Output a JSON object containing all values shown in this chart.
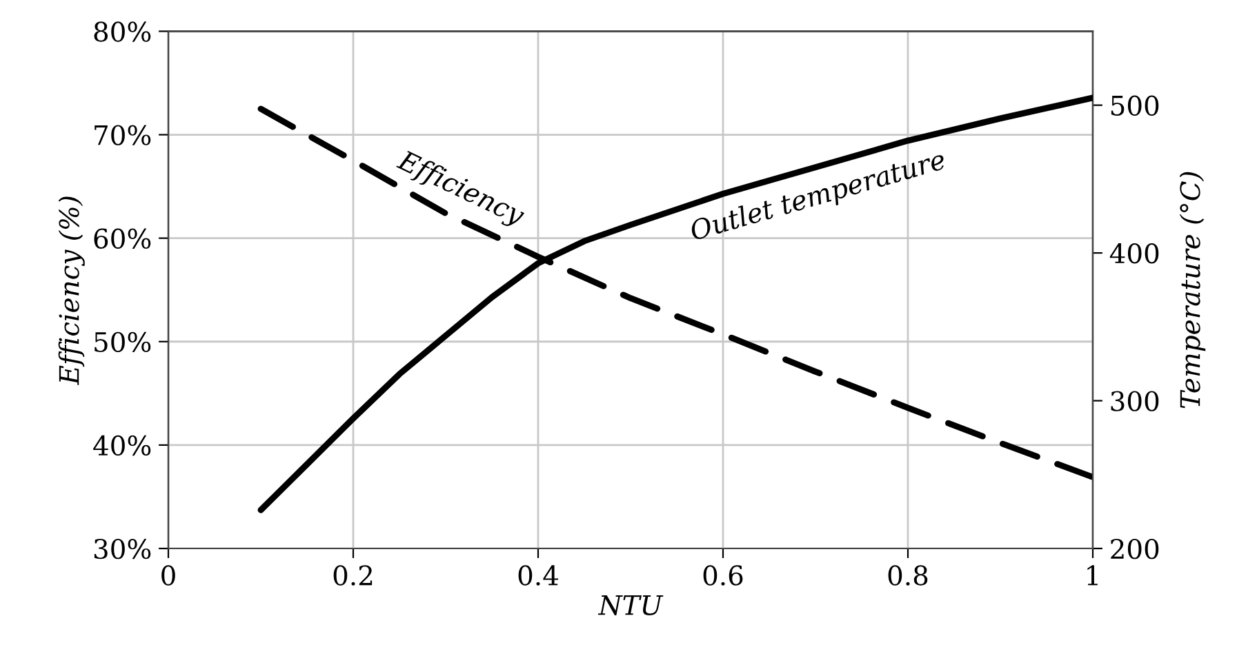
{
  "chart_data": {
    "type": "line",
    "xlabel": "NTU",
    "ylabel": "Efficiency (%)",
    "y2label": "Temperature (°C)",
    "series": [
      {
        "name": "Efficiency",
        "color": "#000000",
        "line_style": "dashed",
        "x": [
          0.1,
          0.2,
          0.3,
          0.4,
          0.5,
          0.6,
          0.7,
          0.8,
          0.9,
          1.0
        ],
        "values": [
          72.5,
          67.5,
          62.4,
          58.2,
          54.2,
          50.7,
          47.1,
          43.6,
          40.2,
          36.9
        ]
      },
      {
        "name": "Outlet temperature",
        "color": "#000000",
        "line_style": "solid",
        "axis": "y2",
        "x": [
          0.1,
          0.15,
          0.2,
          0.25,
          0.3,
          0.35,
          0.4,
          0.45,
          0.5,
          0.6,
          0.7,
          0.8,
          0.9,
          1.0
        ],
        "values": [
          226,
          257,
          288,
          318,
          344,
          370,
          393,
          408,
          419,
          440,
          458,
          476,
          491,
          505
        ]
      }
    ],
    "xlim": [
      0,
      1
    ],
    "xticks": [
      0,
      0.2,
      0.4,
      0.6,
      0.8,
      1
    ],
    "ylim": [
      30,
      80
    ],
    "yticks": [
      {
        "value": 30,
        "label": "30%"
      },
      {
        "value": 40,
        "label": "40%"
      },
      {
        "value": 50,
        "label": "50%"
      },
      {
        "value": 60,
        "label": "60%"
      },
      {
        "value": 70,
        "label": "70%"
      },
      {
        "value": 80,
        "label": "80%"
      }
    ],
    "y2lim": [
      200,
      550
    ],
    "y2ticks": [
      200,
      300,
      400,
      500
    ],
    "grid": true,
    "marker": "none"
  }
}
